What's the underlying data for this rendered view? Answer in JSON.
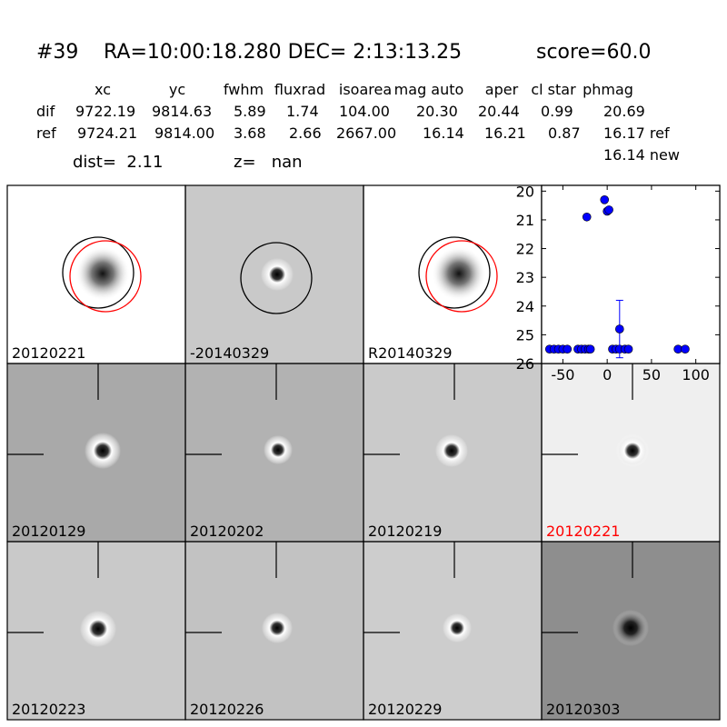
{
  "header": {
    "id": "#39",
    "coords": "RA=10:00:18.280 DEC= 2:13:13.25",
    "score": "score=60.0"
  },
  "table": {
    "columns": [
      "xc",
      "yc",
      "fwhm",
      "fluxrad",
      "isoarea",
      "mag auto",
      "aper",
      "cl star",
      "phmag"
    ],
    "rows": [
      [
        "dif",
        "9722.19",
        "9814.63",
        "5.89",
        "1.74",
        "104.00",
        "20.30",
        "20.44",
        "0.99",
        "20.69"
      ],
      [
        "ref",
        "9724.21",
        "9814.00",
        "3.68",
        "2.66",
        "2667.00",
        "16.14",
        "16.21",
        "0.87",
        "16.17 ref"
      ]
    ],
    "extra": "16.14 new"
  },
  "dist": "dist=  2.11",
  "z": "z=   nan",
  "panels": [
    {
      "label": "20120221",
      "color": "#000000"
    },
    {
      "label": "-20140329",
      "color": "#000000"
    },
    {
      "label": "R20140329",
      "color": "#000000"
    },
    {
      "label": "20120129",
      "color": "#000000"
    },
    {
      "label": "20120202",
      "color": "#000000"
    },
    {
      "label": "20120219",
      "color": "#000000"
    },
    {
      "label": "20120221",
      "color": "#ff0000"
    },
    {
      "label": "20120223",
      "color": "#000000"
    },
    {
      "label": "20120226",
      "color": "#000000"
    },
    {
      "label": "20120229",
      "color": "#000000"
    },
    {
      "label": "20120303",
      "color": "#000000"
    }
  ],
  "chart_data": {
    "type": "scatter",
    "color": "#0000ff",
    "x": [
      -65,
      -60,
      -55,
      -50,
      -45,
      -33,
      -29,
      -25,
      -21,
      -19,
      -23,
      -3,
      0,
      2,
      6,
      10,
      14,
      14,
      20,
      24,
      80,
      88
    ],
    "values": [
      25.5,
      25.5,
      25.5,
      25.5,
      25.5,
      25.5,
      25.5,
      25.5,
      25.5,
      25.5,
      20.9,
      20.3,
      20.7,
      20.65,
      25.5,
      25.5,
      25.5,
      24.8,
      25.5,
      25.5,
      25.5,
      25.5
    ],
    "errors": [
      null,
      null,
      null,
      null,
      null,
      null,
      null,
      null,
      null,
      null,
      null,
      null,
      null,
      null,
      null,
      null,
      null,
      1.0,
      null,
      null,
      null,
      null
    ],
    "xlim": [
      -74,
      127
    ],
    "ylim": [
      26,
      19.8
    ],
    "xticks": [
      -50,
      0,
      50,
      100
    ],
    "yticks": [
      20,
      21,
      22,
      23,
      24,
      25,
      26
    ],
    "grid": false
  }
}
